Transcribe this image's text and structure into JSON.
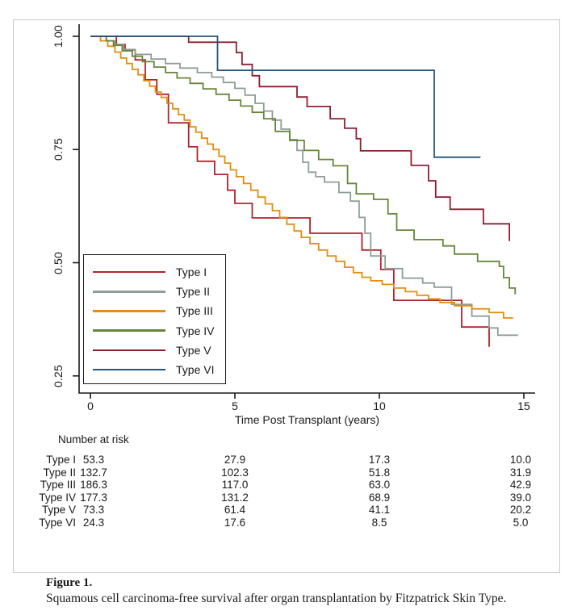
{
  "figure_caption": {
    "title": "Figure 1.",
    "text": "Squamous cell carcinoma-free survival after organ transplantation by Fitzpatrick Skin Type."
  },
  "risk_table": {
    "header": "Number at risk",
    "time_points": [
      0,
      5,
      10,
      15
    ],
    "rows": [
      {
        "label": "Type I",
        "values": [
          "53.3",
          "27.9",
          "17.3",
          "10.0"
        ]
      },
      {
        "label": "Type II",
        "values": [
          "132.7",
          "102.3",
          "51.8",
          "31.9"
        ]
      },
      {
        "label": "Type III",
        "values": [
          "186.3",
          "117.0",
          "63.0",
          "42.9"
        ]
      },
      {
        "label": "Type IV",
        "values": [
          "177.3",
          "131.2",
          "68.9",
          "39.0"
        ]
      },
      {
        "label": "Type V",
        "values": [
          "73.3",
          "61.4",
          "41.1",
          "20.2"
        ]
      },
      {
        "label": "Type VI",
        "values": [
          "24.3",
          "17.6",
          "8.5",
          "5.0"
        ]
      }
    ]
  },
  "chart_data": {
    "type": "line",
    "subtype": "kaplan_meier_step",
    "title": "",
    "xlabel": "Time Post Transplant (years)",
    "ylabel": "",
    "xlim": [
      0,
      15.4
    ],
    "ylim": [
      0.22,
      1.0
    ],
    "grid": false,
    "legend_position": "inside-lower-left",
    "xticks": [
      0,
      5,
      10,
      15
    ],
    "xtick_labels": [
      "0",
      "5",
      "10",
      "15"
    ],
    "yticks": [
      1.0,
      0.75,
      0.5,
      0.25
    ],
    "ytick_labels": [
      "1.00",
      "0.75",
      "0.50",
      "0.25"
    ],
    "axis_color": "#1a1a1a",
    "series": [
      {
        "name": "Type I",
        "color": "#b4232e",
        "points": [
          [
            0,
            1
          ],
          [
            0.9,
            0.982
          ],
          [
            1.2,
            0.97
          ],
          [
            1.55,
            0.948
          ],
          [
            1.9,
            0.904
          ],
          [
            2.3,
            0.872
          ],
          [
            2.7,
            0.809
          ],
          [
            3.4,
            0.756
          ],
          [
            3.7,
            0.724
          ],
          [
            4.3,
            0.695
          ],
          [
            4.75,
            0.66
          ],
          [
            5.0,
            0.631
          ],
          [
            5.6,
            0.599
          ],
          [
            7.6,
            0.565
          ],
          [
            9.4,
            0.528
          ],
          [
            10.05,
            0.485
          ],
          [
            10.5,
            0.417
          ],
          [
            12.85,
            0.358
          ],
          [
            13.8,
            0.314
          ]
        ]
      },
      {
        "name": "Type II",
        "color": "#8d9e96",
        "points": [
          [
            0,
            1
          ],
          [
            0.55,
            0.99
          ],
          [
            0.85,
            0.982
          ],
          [
            1.15,
            0.971
          ],
          [
            1.55,
            0.96
          ],
          [
            2.1,
            0.95
          ],
          [
            2.6,
            0.94
          ],
          [
            3.1,
            0.93
          ],
          [
            3.7,
            0.92
          ],
          [
            4.2,
            0.91
          ],
          [
            4.6,
            0.898
          ],
          [
            5.0,
            0.885
          ],
          [
            5.35,
            0.87
          ],
          [
            5.7,
            0.852
          ],
          [
            6.0,
            0.835
          ],
          [
            6.3,
            0.815
          ],
          [
            6.6,
            0.795
          ],
          [
            6.9,
            0.772
          ],
          [
            7.15,
            0.748
          ],
          [
            7.35,
            0.722
          ],
          [
            7.55,
            0.7
          ],
          [
            7.8,
            0.69
          ],
          [
            8.1,
            0.678
          ],
          [
            8.6,
            0.655
          ],
          [
            9.0,
            0.636
          ],
          [
            9.3,
            0.6
          ],
          [
            9.5,
            0.565
          ],
          [
            9.7,
            0.515
          ],
          [
            10.2,
            0.487
          ],
          [
            10.8,
            0.466
          ],
          [
            11.5,
            0.455
          ],
          [
            11.9,
            0.446
          ],
          [
            12.5,
            0.408
          ],
          [
            13.2,
            0.382
          ],
          [
            13.8,
            0.356
          ],
          [
            14.1,
            0.34
          ],
          [
            14.8,
            0.34
          ]
        ]
      },
      {
        "name": "Type III",
        "color": "#e28e12",
        "points": [
          [
            0,
            1
          ],
          [
            0.35,
            0.99
          ],
          [
            0.6,
            0.978
          ],
          [
            0.85,
            0.965
          ],
          [
            1.05,
            0.952
          ],
          [
            1.25,
            0.94
          ],
          [
            1.45,
            0.927
          ],
          [
            1.65,
            0.915
          ],
          [
            1.85,
            0.902
          ],
          [
            2.05,
            0.89
          ],
          [
            2.25,
            0.877
          ],
          [
            2.45,
            0.865
          ],
          [
            2.65,
            0.852
          ],
          [
            2.85,
            0.84
          ],
          [
            3.05,
            0.827
          ],
          [
            3.25,
            0.815
          ],
          [
            3.45,
            0.8
          ],
          [
            3.65,
            0.788
          ],
          [
            3.85,
            0.775
          ],
          [
            4.05,
            0.762
          ],
          [
            4.25,
            0.75
          ],
          [
            4.45,
            0.735
          ],
          [
            4.65,
            0.72
          ],
          [
            4.85,
            0.705
          ],
          [
            5.05,
            0.69
          ],
          [
            5.3,
            0.675
          ],
          [
            5.55,
            0.66
          ],
          [
            5.8,
            0.645
          ],
          [
            6.05,
            0.63
          ],
          [
            6.3,
            0.615
          ],
          [
            6.55,
            0.6
          ],
          [
            6.8,
            0.585
          ],
          [
            7.05,
            0.57
          ],
          [
            7.3,
            0.556
          ],
          [
            7.6,
            0.542
          ],
          [
            7.9,
            0.528
          ],
          [
            8.2,
            0.515
          ],
          [
            8.5,
            0.503
          ],
          [
            8.8,
            0.49
          ],
          [
            9.1,
            0.478
          ],
          [
            9.4,
            0.468
          ],
          [
            9.7,
            0.46
          ],
          [
            10.1,
            0.452
          ],
          [
            10.5,
            0.444
          ],
          [
            10.9,
            0.436
          ],
          [
            11.3,
            0.428
          ],
          [
            11.7,
            0.42
          ],
          [
            12.1,
            0.412
          ],
          [
            12.6,
            0.405
          ],
          [
            13.2,
            0.398
          ],
          [
            13.8,
            0.39
          ],
          [
            14.3,
            0.378
          ],
          [
            14.6,
            0.376
          ]
        ]
      },
      {
        "name": "Type IV",
        "color": "#68853a",
        "points": [
          [
            0,
            1
          ],
          [
            0.55,
            0.99
          ],
          [
            0.8,
            0.98
          ],
          [
            1.1,
            0.968
          ],
          [
            1.45,
            0.956
          ],
          [
            1.8,
            0.944
          ],
          [
            2.2,
            0.932
          ],
          [
            2.6,
            0.92
          ],
          [
            3.0,
            0.908
          ],
          [
            3.45,
            0.896
          ],
          [
            3.9,
            0.884
          ],
          [
            4.35,
            0.872
          ],
          [
            4.8,
            0.859
          ],
          [
            5.2,
            0.846
          ],
          [
            5.6,
            0.832
          ],
          [
            6.0,
            0.818
          ],
          [
            6.4,
            0.79
          ],
          [
            6.9,
            0.77
          ],
          [
            7.4,
            0.748
          ],
          [
            7.9,
            0.728
          ],
          [
            8.4,
            0.714
          ],
          [
            8.9,
            0.675
          ],
          [
            9.2,
            0.652
          ],
          [
            9.8,
            0.64
          ],
          [
            10.3,
            0.608
          ],
          [
            10.6,
            0.572
          ],
          [
            11.2,
            0.551
          ],
          [
            12.2,
            0.537
          ],
          [
            12.6,
            0.519
          ],
          [
            13.4,
            0.503
          ],
          [
            14.15,
            0.492
          ],
          [
            14.3,
            0.467
          ],
          [
            14.5,
            0.444
          ],
          [
            14.7,
            0.43
          ]
        ]
      },
      {
        "name": "Type V",
        "color": "#8e1f33",
        "points": [
          [
            0,
            1
          ],
          [
            3.4,
            0.987
          ],
          [
            5.05,
            0.964
          ],
          [
            5.25,
            0.938
          ],
          [
            5.6,
            0.913
          ],
          [
            5.85,
            0.889
          ],
          [
            7.15,
            0.866
          ],
          [
            7.5,
            0.845
          ],
          [
            8.3,
            0.818
          ],
          [
            8.8,
            0.797
          ],
          [
            9.2,
            0.774
          ],
          [
            9.35,
            0.747
          ],
          [
            11.1,
            0.715
          ],
          [
            11.7,
            0.681
          ],
          [
            11.95,
            0.645
          ],
          [
            12.45,
            0.618
          ],
          [
            13.6,
            0.586
          ],
          [
            14.5,
            0.548
          ]
        ]
      },
      {
        "name": "Type VI",
        "color": "#26547c",
        "points": [
          [
            0,
            1
          ],
          [
            4.4,
            0.925
          ],
          [
            11.9,
            0.733
          ],
          [
            13.5,
            0.733
          ]
        ]
      }
    ]
  }
}
